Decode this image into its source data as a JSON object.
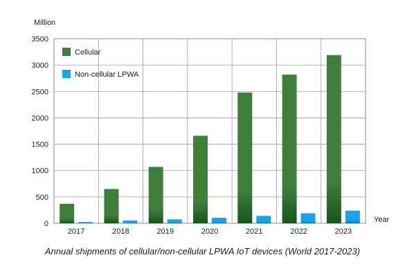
{
  "chart_data": {
    "type": "bar",
    "title": "Annual shipments of cellular/non-cellular LPWA IoT devices (World 2017-2023)",
    "ylabel": "Million",
    "xlabel": "Year",
    "ylim": [
      0,
      3500
    ],
    "yticks": [
      0,
      500,
      1000,
      1500,
      2000,
      2500,
      3000,
      3500
    ],
    "grid": true,
    "legend_position": "top-left",
    "categories": [
      "2017",
      "2018",
      "2019",
      "2020",
      "2021",
      "2022",
      "2023"
    ],
    "series": [
      {
        "name": "Cellular",
        "values": [
          370,
          650,
          1070,
          1660,
          2480,
          2820,
          3190
        ],
        "color": "#3f7f3b",
        "color_dark": "#17551e"
      },
      {
        "name": "Non-cellular LPWA",
        "values": [
          25,
          55,
          75,
          105,
          140,
          190,
          240
        ],
        "color": "#1ba3e8",
        "color_dark": "#0a7bc0"
      }
    ]
  }
}
